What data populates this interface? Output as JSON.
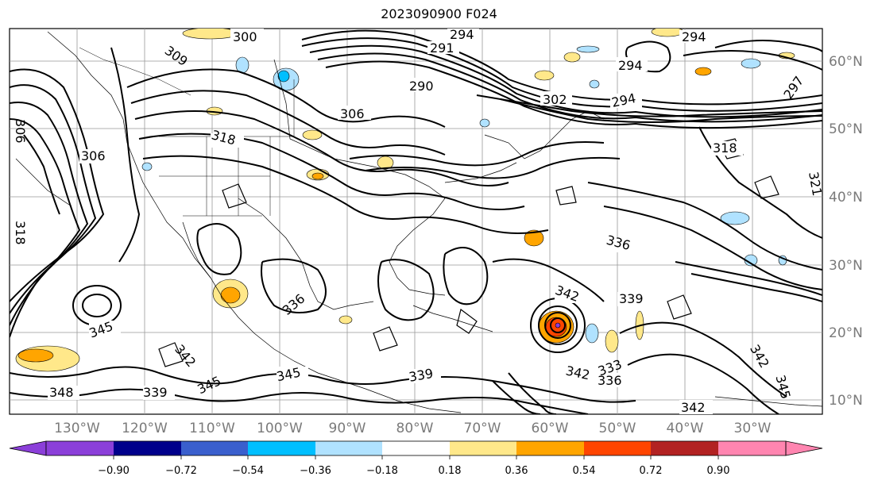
{
  "title": "2023090900 F024",
  "longitude_labels": [
    "130°W",
    "120°W",
    "110°W",
    "100°W",
    "90°W",
    "80°W",
    "70°W",
    "60°W",
    "50°W",
    "40°W",
    "30°W"
  ],
  "latitude_labels": [
    "60°N",
    "50°N",
    "40°N",
    "30°N",
    "20°N",
    "10°N"
  ],
  "contour_labels": [
    "300",
    "294",
    "291",
    "309",
    "306",
    "290",
    "302",
    "294",
    "297",
    "306",
    "318",
    "306",
    "318",
    "321",
    "318",
    "336",
    "339",
    "342",
    "336",
    "345",
    "342",
    "339",
    "345",
    "348",
    "339",
    "345",
    "342",
    "336",
    "333",
    "342",
    "345",
    "342"
  ],
  "colorbar": {
    "tick_labels": [
      "−0.90",
      "−0.72",
      "−0.54",
      "−0.36",
      "−0.18",
      "0.18",
      "0.36",
      "0.54",
      "0.72",
      "0.90"
    ],
    "colors": [
      "#8b3fd9",
      "#00008b",
      "#3a5fcd",
      "#00bfff",
      "#b0e2ff",
      "#ffffff",
      "#ffe88a",
      "#ffa500",
      "#ff4500",
      "#b22222",
      "#ff85b0"
    ]
  }
}
